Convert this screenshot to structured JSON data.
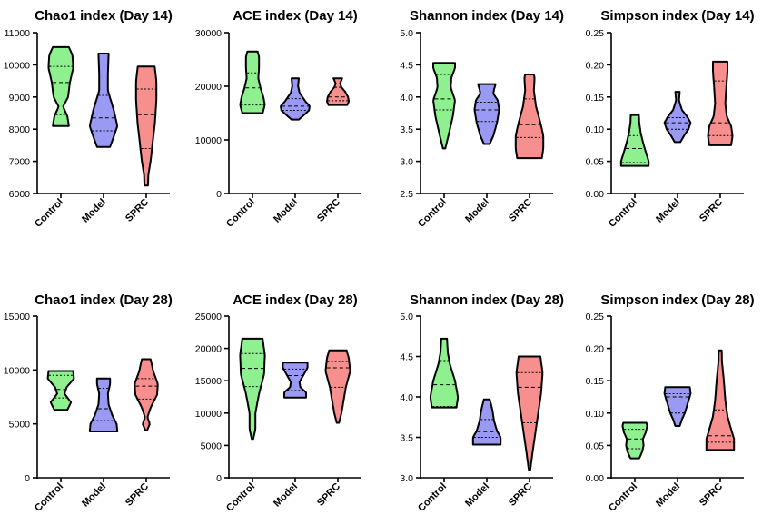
{
  "colors": {
    "Control": "#8ef08e",
    "Model": "#9a9af4",
    "SPRC": "#f78f8f"
  },
  "chart_data": [
    {
      "type": "violin",
      "title": "Chao1 index (Day 14)",
      "categories": [
        "Control",
        "Model",
        "SPRC"
      ],
      "ylim": [
        6000,
        11000
      ],
      "yticks": [
        "6000",
        "7000",
        "8000",
        "9000",
        "10000",
        "11000"
      ],
      "series": [
        {
          "category": "Control",
          "min": 8100,
          "q1": 8450,
          "median": 9450,
          "q3": 9950,
          "max": 10550,
          "shape": [
            [
              8100,
              0.55
            ],
            [
              8400,
              0.45
            ],
            [
              8700,
              0.15
            ],
            [
              9000,
              0.5
            ],
            [
              9450,
              0.62
            ],
            [
              9900,
              0.85
            ],
            [
              10300,
              0.8
            ],
            [
              10550,
              0.55
            ]
          ]
        },
        {
          "category": "Model",
          "min": 7450,
          "q1": 7950,
          "median": 8350,
          "q3": 9050,
          "max": 10350,
          "shape": [
            [
              7450,
              0.45
            ],
            [
              7700,
              0.65
            ],
            [
              8100,
              0.95
            ],
            [
              8600,
              0.7
            ],
            [
              9200,
              0.3
            ],
            [
              9700,
              0.3
            ],
            [
              10350,
              0.35
            ]
          ]
        },
        {
          "category": "SPRC",
          "min": 6250,
          "q1": 7400,
          "median": 8450,
          "q3": 9250,
          "max": 9950,
          "shape": [
            [
              6250,
              0.12
            ],
            [
              6600,
              0.15
            ],
            [
              7000,
              0.3
            ],
            [
              7500,
              0.42
            ],
            [
              8200,
              0.6
            ],
            [
              8900,
              0.7
            ],
            [
              9500,
              0.7
            ],
            [
              9950,
              0.58
            ]
          ]
        }
      ]
    },
    {
      "type": "violin",
      "title": "ACE index (Day 14)",
      "categories": [
        "Control",
        "Model",
        "SPRC"
      ],
      "ylim": [
        0,
        30000
      ],
      "yticks": [
        "0",
        "10000",
        "20000",
        "30000"
      ],
      "series": [
        {
          "category": "Control",
          "min": 15000,
          "q1": 16500,
          "median": 19700,
          "q3": 22500,
          "max": 26500,
          "shape": [
            [
              15000,
              0.7
            ],
            [
              16500,
              0.85
            ],
            [
              18000,
              0.75
            ],
            [
              19700,
              0.55
            ],
            [
              21500,
              0.4
            ],
            [
              23500,
              0.45
            ],
            [
              25500,
              0.45
            ],
            [
              26500,
              0.35
            ]
          ]
        },
        {
          "category": "Model",
          "min": 13800,
          "q1": 15500,
          "median": 16300,
          "q3": 17700,
          "max": 21500,
          "shape": [
            [
              13800,
              0.25
            ],
            [
              14500,
              0.55
            ],
            [
              15500,
              0.95
            ],
            [
              16300,
              1.0
            ],
            [
              17200,
              0.7
            ],
            [
              18800,
              0.3
            ],
            [
              20000,
              0.2
            ],
            [
              21500,
              0.25
            ]
          ]
        },
        {
          "category": "SPRC",
          "min": 16500,
          "q1": 17300,
          "median": 18000,
          "q3": 19800,
          "max": 21500,
          "shape": [
            [
              16500,
              0.65
            ],
            [
              17200,
              0.75
            ],
            [
              18000,
              0.7
            ],
            [
              19000,
              0.5
            ],
            [
              19800,
              0.25
            ],
            [
              20500,
              0.15
            ],
            [
              21500,
              0.3
            ]
          ]
        }
      ]
    },
    {
      "type": "violin",
      "title": "Shannon index (Day 14)",
      "categories": [
        "Control",
        "Model",
        "SPRC"
      ],
      "ylim": [
        2.5,
        5.0
      ],
      "yticks": [
        "2.5",
        "3.0",
        "3.5",
        "4.0",
        "4.5",
        "5.0"
      ],
      "series": [
        {
          "category": "Control",
          "min": 3.2,
          "q1": 3.8,
          "median": 3.97,
          "q3": 4.35,
          "max": 4.53,
          "shape": [
            [
              3.2,
              0.08
            ],
            [
              3.45,
              0.35
            ],
            [
              3.7,
              0.6
            ],
            [
              3.95,
              0.75
            ],
            [
              4.15,
              0.45
            ],
            [
              4.3,
              0.5
            ],
            [
              4.45,
              0.75
            ],
            [
              4.53,
              0.75
            ]
          ]
        },
        {
          "category": "Model",
          "min": 3.27,
          "q1": 3.62,
          "median": 3.8,
          "q3": 3.92,
          "max": 4.2,
          "shape": [
            [
              3.27,
              0.2
            ],
            [
              3.4,
              0.45
            ],
            [
              3.6,
              0.7
            ],
            [
              3.8,
              0.85
            ],
            [
              3.95,
              0.75
            ],
            [
              4.05,
              0.45
            ],
            [
              4.12,
              0.5
            ],
            [
              4.2,
              0.6
            ]
          ]
        },
        {
          "category": "SPRC",
          "min": 3.05,
          "q1": 3.37,
          "median": 3.57,
          "q3": 3.97,
          "max": 4.35,
          "shape": [
            [
              3.05,
              0.85
            ],
            [
              3.2,
              0.95
            ],
            [
              3.4,
              0.95
            ],
            [
              3.6,
              0.75
            ],
            [
              3.85,
              0.45
            ],
            [
              4.1,
              0.3
            ],
            [
              4.3,
              0.35
            ],
            [
              4.35,
              0.3
            ]
          ]
        }
      ]
    },
    {
      "type": "violin",
      "title": "Simpson index (Day 14)",
      "categories": [
        "Control",
        "Model",
        "SPRC"
      ],
      "ylim": [
        0.0,
        0.25
      ],
      "yticks": [
        "0.00",
        "0.05",
        "0.10",
        "0.15",
        "0.20",
        "0.25"
      ],
      "series": [
        {
          "category": "Control",
          "min": 0.043,
          "q1": 0.048,
          "median": 0.07,
          "q3": 0.09,
          "max": 0.122,
          "shape": [
            [
              0.043,
              0.95
            ],
            [
              0.05,
              0.95
            ],
            [
              0.065,
              0.75
            ],
            [
              0.08,
              0.55
            ],
            [
              0.095,
              0.4
            ],
            [
              0.11,
              0.3
            ],
            [
              0.122,
              0.28
            ]
          ]
        },
        {
          "category": "Model",
          "min": 0.08,
          "q1": 0.1,
          "median": 0.11,
          "q3": 0.118,
          "max": 0.158,
          "shape": [
            [
              0.08,
              0.2
            ],
            [
              0.09,
              0.45
            ],
            [
              0.1,
              0.75
            ],
            [
              0.11,
              0.9
            ],
            [
              0.12,
              0.65
            ],
            [
              0.13,
              0.3
            ],
            [
              0.145,
              0.1
            ],
            [
              0.158,
              0.15
            ]
          ]
        },
        {
          "category": "SPRC",
          "min": 0.075,
          "q1": 0.09,
          "median": 0.11,
          "q3": 0.175,
          "max": 0.205,
          "shape": [
            [
              0.075,
              0.75
            ],
            [
              0.09,
              0.85
            ],
            [
              0.105,
              0.75
            ],
            [
              0.12,
              0.45
            ],
            [
              0.14,
              0.35
            ],
            [
              0.165,
              0.42
            ],
            [
              0.19,
              0.5
            ],
            [
              0.205,
              0.5
            ]
          ]
        }
      ]
    },
    {
      "type": "violin",
      "title": "Chao1 index (Day 28)",
      "categories": [
        "Control",
        "Model",
        "SPRC"
      ],
      "ylim": [
        0,
        15000
      ],
      "yticks": [
        "0",
        "5000",
        "10000",
        "15000"
      ],
      "series": [
        {
          "category": "Control",
          "min": 6300,
          "q1": 7400,
          "median": 8200,
          "q3": 9500,
          "max": 9900,
          "shape": [
            [
              6300,
              0.45
            ],
            [
              7000,
              0.7
            ],
            [
              7800,
              0.25
            ],
            [
              8400,
              0.4
            ],
            [
              9200,
              0.9
            ],
            [
              9900,
              0.85
            ]
          ]
        },
        {
          "category": "Model",
          "min": 4300,
          "q1": 5300,
          "median": 6400,
          "q3": 8300,
          "max": 9200,
          "shape": [
            [
              4300,
              0.95
            ],
            [
              5000,
              0.9
            ],
            [
              5800,
              0.6
            ],
            [
              6800,
              0.35
            ],
            [
              7800,
              0.3
            ],
            [
              8700,
              0.45
            ],
            [
              9200,
              0.45
            ]
          ]
        },
        {
          "category": "SPRC",
          "min": 4400,
          "q1": 7300,
          "median": 8500,
          "q3": 9200,
          "max": 11000,
          "shape": [
            [
              4400,
              0.06
            ],
            [
              5000,
              0.25
            ],
            [
              5600,
              0.08
            ],
            [
              6500,
              0.3
            ],
            [
              7700,
              0.75
            ],
            [
              8700,
              0.8
            ],
            [
              9800,
              0.5
            ],
            [
              11000,
              0.3
            ]
          ]
        }
      ]
    },
    {
      "type": "violin",
      "title": "ACE index (Day 28)",
      "categories": [
        "Control",
        "Model",
        "SPRC"
      ],
      "ylim": [
        0,
        25000
      ],
      "yticks": [
        "0",
        "5000",
        "10000",
        "15000",
        "20000",
        "25000"
      ],
      "series": [
        {
          "category": "Control",
          "min": 6000,
          "q1": 14100,
          "median": 16900,
          "q3": 19200,
          "max": 21500,
          "shape": [
            [
              6000,
              0.05
            ],
            [
              7500,
              0.2
            ],
            [
              10000,
              0.2
            ],
            [
              13000,
              0.45
            ],
            [
              16000,
              0.8
            ],
            [
              19000,
              0.85
            ],
            [
              21500,
              0.7
            ]
          ]
        },
        {
          "category": "Model",
          "min": 12400,
          "q1": 13500,
          "median": 15800,
          "q3": 16800,
          "max": 17800,
          "shape": [
            [
              12400,
              0.75
            ],
            [
              13200,
              0.75
            ],
            [
              14000,
              0.35
            ],
            [
              14800,
              0.3
            ],
            [
              15800,
              0.55
            ],
            [
              17000,
              0.85
            ],
            [
              17800,
              0.85
            ]
          ]
        },
        {
          "category": "SPRC",
          "min": 8500,
          "q1": 14000,
          "median": 17000,
          "q3": 18000,
          "max": 19700,
          "shape": [
            [
              8500,
              0.08
            ],
            [
              10000,
              0.25
            ],
            [
              12000,
              0.4
            ],
            [
              14000,
              0.55
            ],
            [
              16500,
              0.85
            ],
            [
              18500,
              0.75
            ],
            [
              19700,
              0.6
            ]
          ]
        }
      ]
    },
    {
      "type": "violin",
      "title": "Shannon index (Day 28)",
      "categories": [
        "Control",
        "Model",
        "SPRC"
      ],
      "ylim": [
        3.0,
        5.0
      ],
      "yticks": [
        "3.0",
        "3.5",
        "4.0",
        "4.5",
        "5.0"
      ],
      "series": [
        {
          "category": "Control",
          "min": 3.87,
          "q1": 3.88,
          "median": 4.15,
          "q3": 4.45,
          "max": 4.72,
          "shape": [
            [
              3.87,
              0.85
            ],
            [
              4.0,
              0.95
            ],
            [
              4.2,
              0.75
            ],
            [
              4.4,
              0.4
            ],
            [
              4.55,
              0.25
            ],
            [
              4.72,
              0.2
            ]
          ]
        },
        {
          "category": "Model",
          "min": 3.41,
          "q1": 3.5,
          "median": 3.57,
          "q3": 3.72,
          "max": 3.97,
          "shape": [
            [
              3.41,
              0.95
            ],
            [
              3.5,
              0.95
            ],
            [
              3.58,
              0.7
            ],
            [
              3.7,
              0.5
            ],
            [
              3.82,
              0.4
            ],
            [
              3.9,
              0.3
            ],
            [
              3.97,
              0.2
            ]
          ]
        },
        {
          "category": "SPRC",
          "min": 3.1,
          "q1": 3.68,
          "median": 4.12,
          "q3": 4.3,
          "max": 4.5,
          "shape": [
            [
              3.1,
              0.05
            ],
            [
              3.3,
              0.2
            ],
            [
              3.55,
              0.4
            ],
            [
              3.8,
              0.6
            ],
            [
              4.05,
              0.8
            ],
            [
              4.3,
              0.9
            ],
            [
              4.5,
              0.75
            ]
          ]
        }
      ]
    },
    {
      "type": "violin",
      "title": "Simpson index (Day 28)",
      "categories": [
        "Control",
        "Model",
        "SPRC"
      ],
      "ylim": [
        0.0,
        0.25
      ],
      "yticks": [
        "0.00",
        "0.05",
        "0.10",
        "0.15",
        "0.20",
        "0.25"
      ],
      "series": [
        {
          "category": "Control",
          "min": 0.03,
          "q1": 0.045,
          "median": 0.06,
          "q3": 0.075,
          "max": 0.085,
          "shape": [
            [
              0.03,
              0.3
            ],
            [
              0.04,
              0.5
            ],
            [
              0.05,
              0.6
            ],
            [
              0.06,
              0.55
            ],
            [
              0.07,
              0.75
            ],
            [
              0.08,
              0.85
            ],
            [
              0.085,
              0.8
            ]
          ]
        },
        {
          "category": "Model",
          "min": 0.08,
          "q1": 0.1,
          "median": 0.125,
          "q3": 0.13,
          "max": 0.14,
          "shape": [
            [
              0.08,
              0.15
            ],
            [
              0.09,
              0.3
            ],
            [
              0.1,
              0.5
            ],
            [
              0.115,
              0.7
            ],
            [
              0.13,
              0.9
            ],
            [
              0.14,
              0.85
            ]
          ]
        },
        {
          "category": "SPRC",
          "min": 0.043,
          "q1": 0.055,
          "median": 0.065,
          "q3": 0.105,
          "max": 0.197,
          "shape": [
            [
              0.043,
              0.95
            ],
            [
              0.06,
              0.95
            ],
            [
              0.075,
              0.75
            ],
            [
              0.095,
              0.5
            ],
            [
              0.12,
              0.35
            ],
            [
              0.15,
              0.25
            ],
            [
              0.18,
              0.12
            ],
            [
              0.197,
              0.1
            ]
          ]
        }
      ]
    }
  ]
}
